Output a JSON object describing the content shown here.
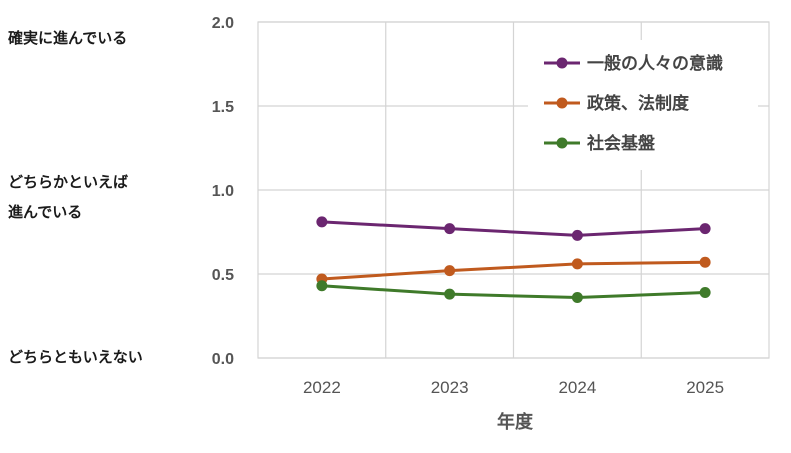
{
  "side_labels": {
    "top": "確実に進んでいる",
    "middle_line1": "どちらかといえば",
    "middle_line2": "進んでいる",
    "bottom": "どちらともいえない"
  },
  "chart_data": {
    "type": "line",
    "title": "",
    "xlabel": "年度",
    "ylabel": "",
    "categories": [
      "2022",
      "2023",
      "2024",
      "2025"
    ],
    "ylim": [
      0,
      2
    ],
    "yticks": [
      "0.0",
      "0.5",
      "1.0",
      "1.5",
      "2.0"
    ],
    "grid": true,
    "legend_position": "top-right",
    "series": [
      {
        "name": "一般の人々の意識",
        "color": "#6b2670",
        "values": [
          0.81,
          0.77,
          0.73,
          0.77
        ]
      },
      {
        "name": "政策、法制度",
        "color": "#c05a1e",
        "values": [
          0.47,
          0.52,
          0.56,
          0.57
        ]
      },
      {
        "name": "社会基盤",
        "color": "#3f7a2a",
        "values": [
          0.43,
          0.38,
          0.36,
          0.39
        ]
      }
    ]
  }
}
